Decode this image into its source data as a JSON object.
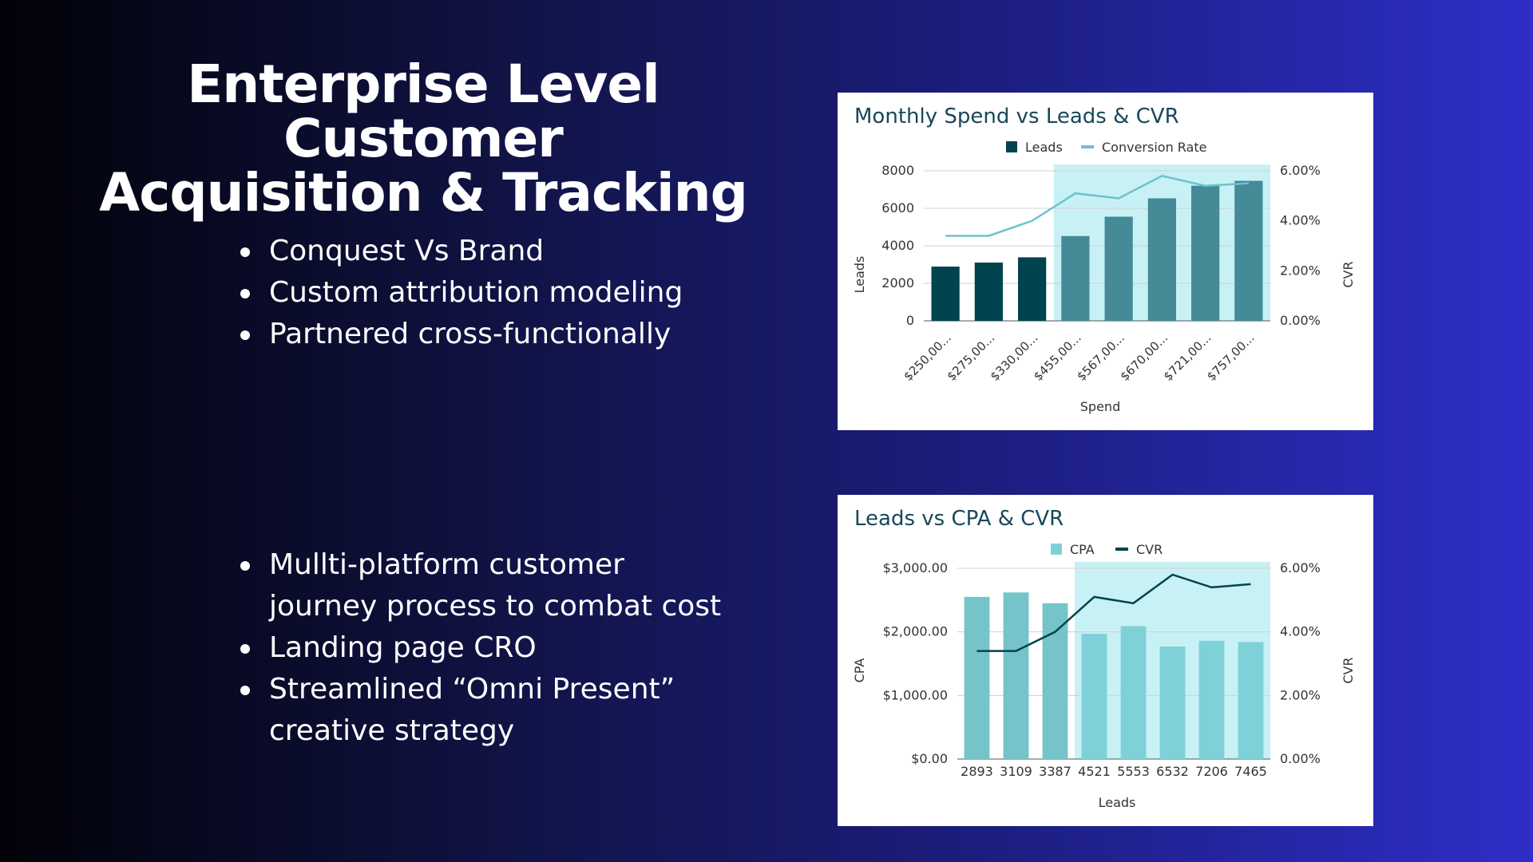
{
  "slide": {
    "title_line1": "Enterprise Level Customer",
    "title_line2": "Acquisition & Tracking",
    "bullets_top": [
      "Conquest Vs Brand",
      "Custom attribution modeling",
      "Partnered cross-functionally"
    ],
    "bullets_bottom": [
      "Mullti-platform customer journey process to combat cost",
      "Landing page CRO",
      "Streamlined “Omni Present” creative strategy"
    ]
  },
  "colors": {
    "dark_teal": "#01434f",
    "mid_teal": "#448b97",
    "light_teal": "#6cc3cb",
    "cpa_bar": "#7fd1d8",
    "highlight": "#c8f1f5",
    "title_text": "#17485a"
  },
  "chart_data": [
    {
      "type": "bar",
      "title": "Monthly Spend vs Leads & CVR",
      "legend": [
        "Leads",
        "Conversion Rate"
      ],
      "legend_position": "top",
      "xlabel": "Spend",
      "ylabel": "Leads",
      "y2label": "CVR",
      "categories": [
        "$250,00...",
        "$275,00...",
        "$330,00...",
        "$455,00...",
        "$567,00...",
        "$670,00...",
        "$721,00...",
        "$757,00..."
      ],
      "ylim": [
        0,
        8000
      ],
      "yticks": [
        "8000",
        "6000",
        "4000",
        "2000",
        "0"
      ],
      "y2lim": [
        0,
        6
      ],
      "y2ticks": [
        "6.00%",
        "4.00%",
        "2.00%",
        "0.00%"
      ],
      "highlight_from_index": 3,
      "series": [
        {
          "name": "Leads",
          "kind": "bar",
          "values": [
            2893,
            3109,
            3387,
            4521,
            5553,
            6532,
            7206,
            7465
          ]
        },
        {
          "name": "Conversion Rate",
          "kind": "line",
          "axis": "right",
          "values": [
            3.4,
            3.4,
            4.0,
            5.1,
            4.9,
            5.8,
            5.4,
            5.5
          ]
        }
      ],
      "grid": true
    },
    {
      "type": "bar",
      "title": "Leads vs CPA & CVR",
      "legend": [
        "CPA",
        "CVR"
      ],
      "legend_position": "top",
      "xlabel": "Leads",
      "ylabel": "CPA",
      "y2label": "CVR",
      "categories": [
        "2893",
        "3109",
        "3387",
        "4521",
        "5553",
        "6532",
        "7206",
        "7465"
      ],
      "ylim": [
        0,
        3000
      ],
      "yticks": [
        "$3,000.00",
        "$2,000.00",
        "$1,000.00",
        "$0.00"
      ],
      "y2lim": [
        0,
        6
      ],
      "y2ticks": [
        "6.00%",
        "4.00%",
        "2.00%",
        "0.00%"
      ],
      "highlight_from_index": 3,
      "series": [
        {
          "name": "CPA",
          "kind": "bar",
          "values": [
            2550,
            2620,
            2450,
            1970,
            2090,
            1770,
            1860,
            1840
          ]
        },
        {
          "name": "CVR",
          "kind": "line",
          "axis": "right",
          "values": [
            3.4,
            3.4,
            4.0,
            5.1,
            4.9,
            5.8,
            5.4,
            5.5
          ]
        }
      ],
      "grid": true
    }
  ]
}
